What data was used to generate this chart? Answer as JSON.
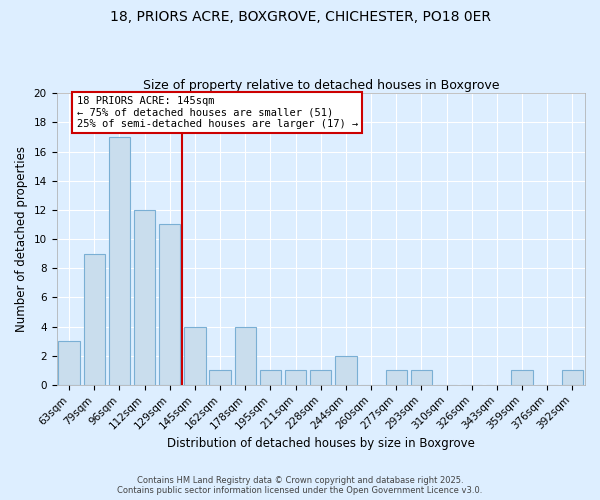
{
  "title_line1": "18, PRIORS ACRE, BOXGROVE, CHICHESTER, PO18 0ER",
  "title_line2": "Size of property relative to detached houses in Boxgrove",
  "xlabel": "Distribution of detached houses by size in Boxgrove",
  "ylabel": "Number of detached properties",
  "categories": [
    "63sqm",
    "79sqm",
    "96sqm",
    "112sqm",
    "129sqm",
    "145sqm",
    "162sqm",
    "178sqm",
    "195sqm",
    "211sqm",
    "228sqm",
    "244sqm",
    "260sqm",
    "277sqm",
    "293sqm",
    "310sqm",
    "326sqm",
    "343sqm",
    "359sqm",
    "376sqm",
    "392sqm"
  ],
  "values": [
    3,
    9,
    17,
    12,
    11,
    4,
    1,
    4,
    1,
    1,
    1,
    2,
    0,
    1,
    1,
    0,
    0,
    0,
    1,
    0,
    1
  ],
  "bar_color": "#c9dded",
  "bar_edge_color": "#7aafd4",
  "vline_color": "#cc0000",
  "annotation_title": "18 PRIORS ACRE: 145sqm",
  "annotation_line2": "← 75% of detached houses are smaller (51)",
  "annotation_line3": "25% of semi-detached houses are larger (17) →",
  "annotation_box_color": "#ffffff",
  "annotation_box_edge_color": "#cc0000",
  "ylim": [
    0,
    20
  ],
  "yticks": [
    0,
    2,
    4,
    6,
    8,
    10,
    12,
    14,
    16,
    18,
    20
  ],
  "grid_color": "#ffffff",
  "background_color": "#ddeeff",
  "footer_line1": "Contains HM Land Registry data © Crown copyright and database right 2025.",
  "footer_line2": "Contains public sector information licensed under the Open Government Licence v3.0.",
  "title_fontsize": 10,
  "subtitle_fontsize": 9,
  "axis_label_fontsize": 8.5,
  "tick_fontsize": 7.5,
  "annotation_fontsize": 7.5,
  "footer_fontsize": 6
}
